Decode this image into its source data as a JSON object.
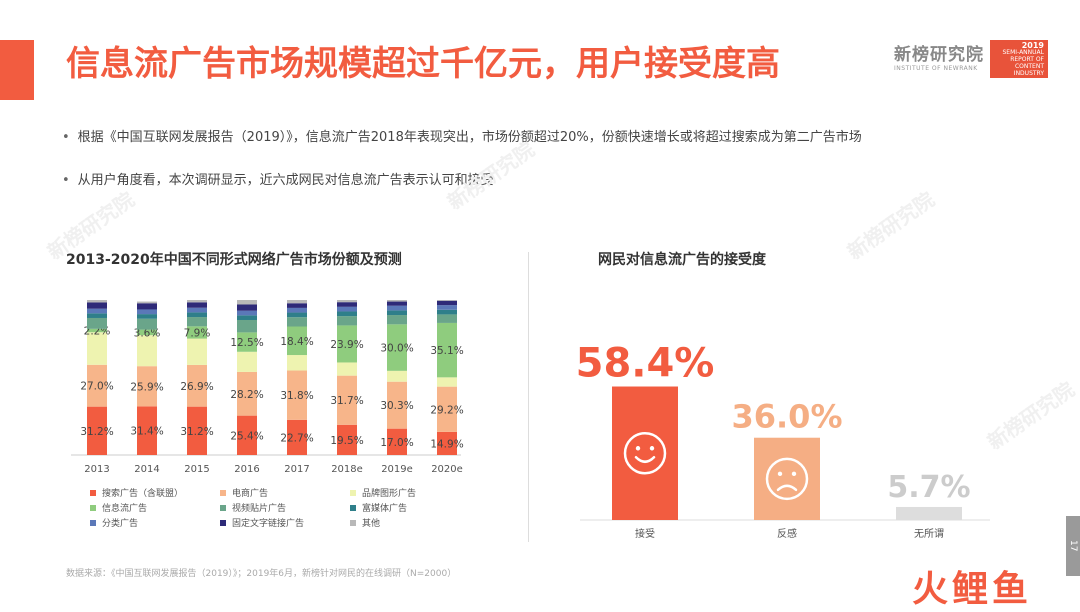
{
  "header": {
    "title": "信息流广告市场规模超过千亿元，用户接受度高",
    "brand_name": "新榜研究院",
    "brand_sub": "INSTITUTE OF NEWRANK",
    "badge_year": "2019",
    "badge_text": "SEMI-ANNUAL REPORT OF CONTENT INDUSTRY"
  },
  "bullets": [
    "根据《中国互联网发展报告（2019）》，信息流广告2018年表现突出，市场份额超过20%，份额快速增长或将超过搜索成为第二广告市场",
    "从用户角度看，本次调研显示，近六成网民对信息流广告表示认可和接受"
  ],
  "footer": "数据来源：《中国互联网发展报告（2019）》；2019年6月，新榜针对网民的在线调研（N=2000）",
  "page_number": "17",
  "watermark_text": "新榜研究院",
  "logo_watermark": "火鲤鱼",
  "colors": {
    "accent": "#f25c40",
    "search": "#f25c40",
    "ecommerce": "#f7b58a",
    "brand_display": "#eef3b0",
    "feed": "#8fcc7e",
    "video_patch": "#6aa58a",
    "rich_media": "#2f7f8a",
    "classified": "#5b78b8",
    "text_link": "#2e2a78",
    "other": "#b8b8b8"
  },
  "chart_data": [
    {
      "type": "bar",
      "stacked": true,
      "title": "2013-2020年中国不同形式网络广告市场份额及预测",
      "categories": [
        "2013",
        "2014",
        "2015",
        "2016",
        "2017",
        "2018e",
        "2019e",
        "2020e"
      ],
      "ylim": [
        0,
        100
      ],
      "legend_position": "bottom",
      "series": [
        {
          "name": "搜索广告（含联盟）",
          "color_key": "search",
          "values": [
            31.2,
            31.4,
            31.2,
            25.4,
            22.7,
            19.5,
            17.0,
            14.9
          ]
        },
        {
          "name": "电商广告",
          "color_key": "ecommerce",
          "values": [
            27.0,
            25.9,
            26.9,
            28.2,
            31.8,
            31.7,
            30.3,
            29.2
          ]
        },
        {
          "name": "品牌图形广告",
          "color_key": "brand_display",
          "values": [
            21.0,
            20.0,
            17.0,
            13.0,
            10.0,
            8.5,
            7.0,
            6.0
          ]
        },
        {
          "name": "信息流广告",
          "color_key": "feed",
          "values": [
            2.2,
            3.6,
            7.9,
            12.5,
            18.4,
            23.9,
            30.0,
            35.1
          ]
        },
        {
          "name": "视频贴片广告",
          "color_key": "video_patch",
          "values": [
            7.0,
            7.0,
            6.0,
            8.0,
            6.0,
            6.0,
            6.0,
            5.5
          ]
        },
        {
          "name": "富媒体广告",
          "color_key": "rich_media",
          "values": [
            3.0,
            3.0,
            3.0,
            3.0,
            3.0,
            3.0,
            3.0,
            3.0
          ]
        },
        {
          "name": "分类广告",
          "color_key": "classified",
          "values": [
            3.0,
            3.0,
            3.0,
            3.0,
            3.0,
            3.0,
            3.0,
            3.0
          ]
        },
        {
          "name": "固定文字链接广告",
          "color_key": "text_link",
          "values": [
            4.0,
            4.0,
            3.5,
            4.0,
            3.0,
            3.0,
            2.7,
            2.8
          ]
        },
        {
          "name": "其他",
          "color_key": "other",
          "values": [
            1.6,
            1.1,
            1.5,
            2.9,
            2.1,
            1.4,
            1.0,
            0.5
          ]
        }
      ],
      "labeled_series": [
        "搜索广告（含联盟）",
        "电商广告",
        "信息流广告"
      ]
    },
    {
      "type": "bar",
      "title": "网民对信息流广告的接受度",
      "categories": [
        "接受",
        "反感",
        "无所谓"
      ],
      "values": [
        58.4,
        36.0,
        5.7
      ],
      "value_labels": [
        "58.4%",
        "36.0%",
        "5.7%"
      ],
      "bar_colors": [
        "#f25c40",
        "#f5ae84",
        "#dddddd"
      ],
      "label_colors": [
        "#f25c40",
        "#f5ae84",
        "#cccccc"
      ],
      "icons": [
        "smile-face-icon",
        "sad-face-icon",
        ""
      ],
      "ylim": [
        0,
        70
      ]
    }
  ]
}
